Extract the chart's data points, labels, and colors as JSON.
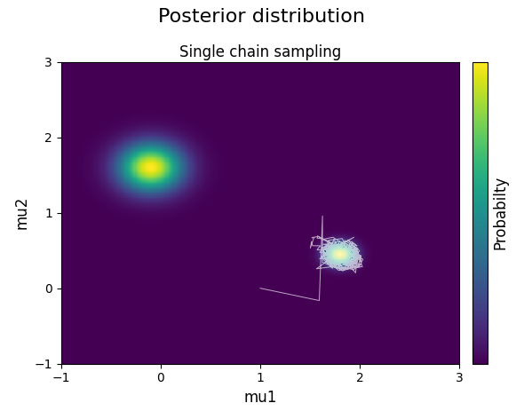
{
  "title": "Posterior distribution",
  "subtitle": "Single chain sampling",
  "xlabel": "mu1",
  "ylabel": "mu2",
  "xlim": [
    -1,
    3
  ],
  "ylim": [
    -1,
    3
  ],
  "xticks": [
    -1,
    0,
    1,
    2,
    3
  ],
  "yticks": [
    -1,
    0,
    1,
    2,
    3
  ],
  "colorbar_label": "Probabilty",
  "cmap": "viridis",
  "mode1_mean": [
    -0.1,
    1.6
  ],
  "mode1_std": 0.22,
  "mode1_weight": 0.5,
  "mode2_mean": [
    1.8,
    0.45
  ],
  "mode2_std": 0.1,
  "mode2_weight": 0.5,
  "chain_color": "white",
  "chain_alpha": 0.65,
  "chain_linewidth": 0.7,
  "initial_state": [
    1.0,
    0.0
  ],
  "random_seed": 7,
  "figure_facecolor": "white",
  "title_fontsize": 16,
  "subtitle_fontsize": 12,
  "label_fontsize": 12
}
